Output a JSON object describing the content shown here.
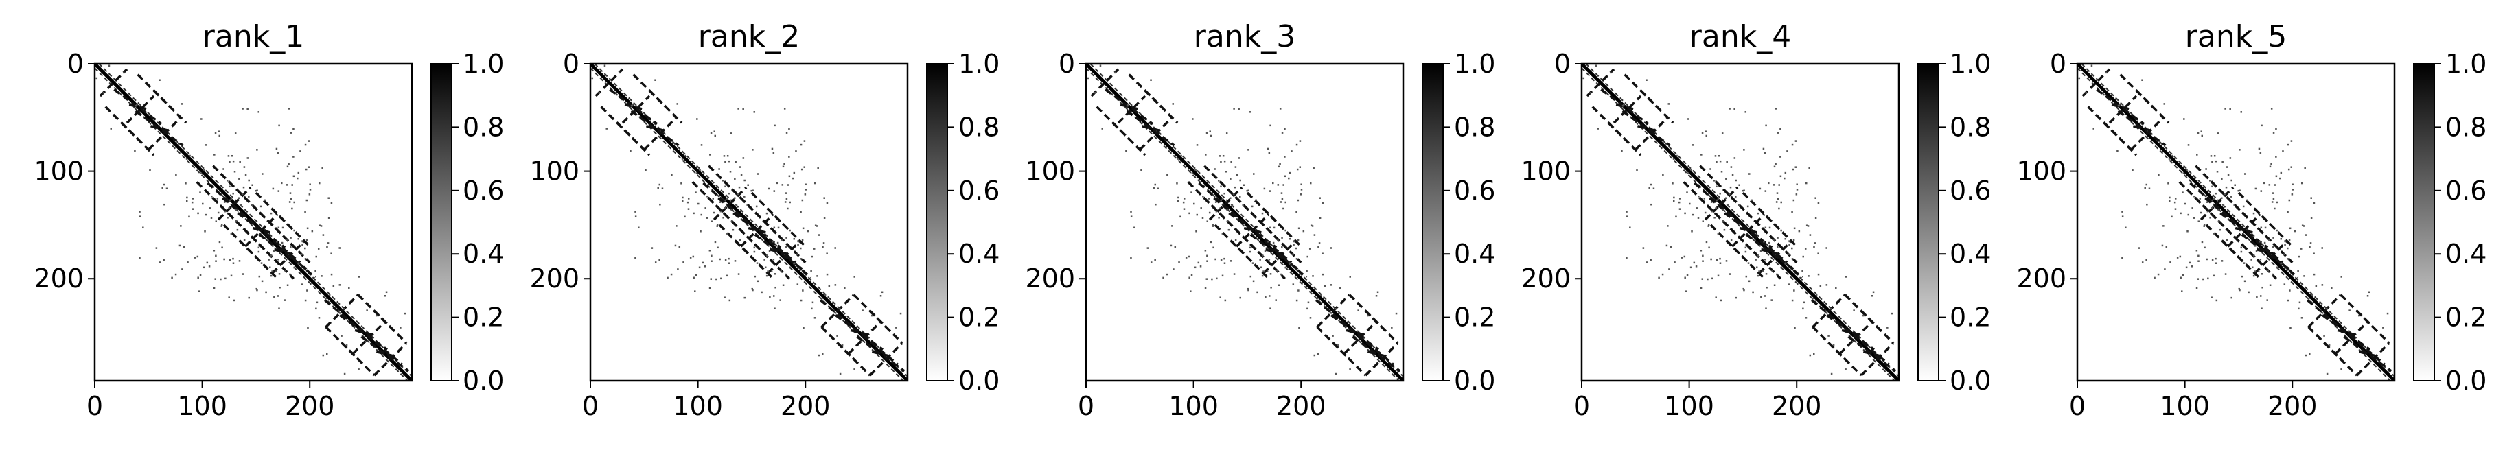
{
  "figure": {
    "panels": [
      {
        "title": "rank_1"
      },
      {
        "title": "rank_2"
      },
      {
        "title": "rank_3"
      },
      {
        "title": "rank_4"
      },
      {
        "title": "rank_5"
      }
    ],
    "colorbar": {
      "ticks": [
        "0.0",
        "0.2",
        "0.4",
        "0.6",
        "0.8",
        "1.0"
      ],
      "colormap": "Greys",
      "range": [
        0,
        1
      ]
    }
  },
  "chart_data": [
    {
      "type": "heatmap",
      "title": "rank_1",
      "x_ticks": [
        0,
        100,
        200
      ],
      "y_ticks": [
        0,
        100,
        200
      ],
      "xlim": [
        0,
        295
      ],
      "ylim": [
        295,
        0
      ],
      "value_range": [
        0,
        1
      ],
      "description_of_structure": "contact map"
    },
    {
      "type": "heatmap",
      "title": "rank_2",
      "x_ticks": [
        0,
        100,
        200
      ],
      "y_ticks": [
        0,
        100,
        200
      ],
      "xlim": [
        0,
        295
      ],
      "ylim": [
        295,
        0
      ],
      "value_range": [
        0,
        1
      ]
    },
    {
      "type": "heatmap",
      "title": "rank_3",
      "x_ticks": [
        0,
        100,
        200
      ],
      "y_ticks": [
        0,
        100,
        200
      ],
      "xlim": [
        0,
        295
      ],
      "ylim": [
        295,
        0
      ],
      "value_range": [
        0,
        1
      ]
    },
    {
      "type": "heatmap",
      "title": "rank_4",
      "x_ticks": [
        0,
        100,
        200
      ],
      "y_ticks": [
        0,
        100,
        200
      ],
      "xlim": [
        0,
        295
      ],
      "ylim": [
        295,
        0
      ],
      "value_range": [
        0,
        1
      ]
    },
    {
      "type": "heatmap",
      "title": "rank_5",
      "x_ticks": [
        0,
        100,
        200
      ],
      "y_ticks": [
        0,
        100,
        200
      ],
      "xlim": [
        0,
        295
      ],
      "ylim": [
        295,
        0
      ],
      "value_range": [
        0,
        1
      ]
    }
  ]
}
